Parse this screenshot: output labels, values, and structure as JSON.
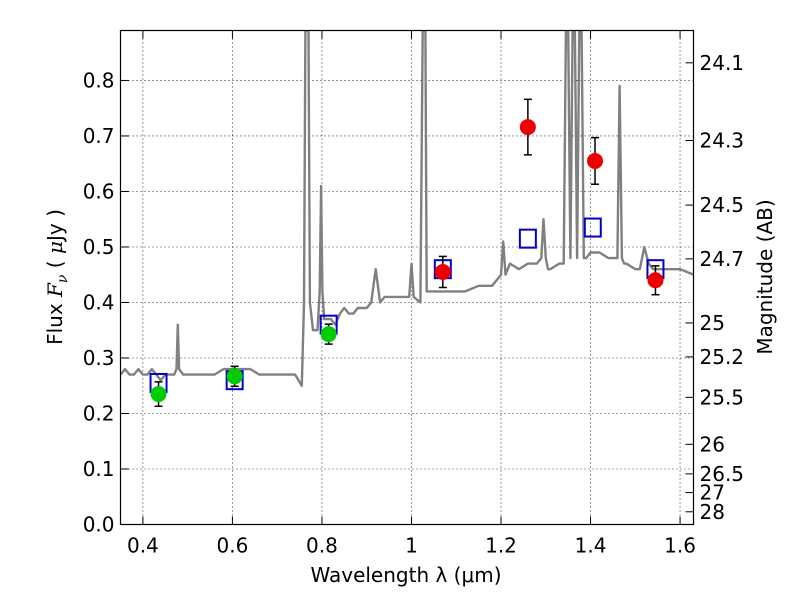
{
  "chart_data": {
    "type": "scatter",
    "title": "",
    "xlabel": "Wavelength  λ (μm)",
    "ylabel": "Flux  F_ν ( μJy )",
    "y2label": "Magnitude (AB)",
    "xlim": [
      0.35,
      1.63
    ],
    "ylim": [
      0.0,
      0.89
    ],
    "grid": true,
    "x_ticks": [
      0.4,
      0.6,
      0.8,
      1.0,
      1.2,
      1.4,
      1.6
    ],
    "x_tick_labels": [
      "0.4",
      "0.6",
      "0.8",
      "1",
      "1.2",
      "1.4",
      "1.6"
    ],
    "y_ticks": [
      0.0,
      0.1,
      0.2,
      0.3,
      0.4,
      0.5,
      0.6,
      0.7,
      0.8
    ],
    "y_tick_labels": [
      "0.0",
      "0.1",
      "0.2",
      "0.3",
      "0.4",
      "0.5",
      "0.6",
      "0.7",
      "0.8"
    ],
    "y2_ticks": [
      {
        "label": "24.1",
        "flux": 0.8318
      },
      {
        "label": "24.3",
        "flux": 0.6918
      },
      {
        "label": "24.5",
        "flux": 0.5754
      },
      {
        "label": "24.7",
        "flux": 0.4786
      },
      {
        "label": "25",
        "flux": 0.3631
      },
      {
        "label": "25.2",
        "flux": 0.302
      },
      {
        "label": "25.5",
        "flux": 0.2291
      },
      {
        "label": "26",
        "flux": 0.1445
      },
      {
        "label": "26.5",
        "flux": 0.0912
      },
      {
        "label": "27",
        "flux": 0.0575
      },
      {
        "label": "28",
        "flux": 0.0229
      }
    ],
    "series": [
      {
        "kind": "model-spectrum",
        "color": "#808080",
        "x": [
          0.35,
          0.36,
          0.37,
          0.38,
          0.39,
          0.4,
          0.41,
          0.42,
          0.43,
          0.44,
          0.45,
          0.46,
          0.47,
          0.475,
          0.478,
          0.481,
          0.49,
          0.5,
          0.52,
          0.54,
          0.56,
          0.58,
          0.6,
          0.62,
          0.64,
          0.66,
          0.68,
          0.7,
          0.72,
          0.74,
          0.755,
          0.76,
          0.763,
          0.767,
          0.77,
          0.773,
          0.78,
          0.79,
          0.795,
          0.798,
          0.801,
          0.805,
          0.81,
          0.82,
          0.83,
          0.84,
          0.85,
          0.86,
          0.87,
          0.88,
          0.89,
          0.9,
          0.91,
          0.92,
          0.93,
          0.94,
          0.96,
          0.98,
          0.995,
          1.0,
          1.005,
          1.02,
          1.025,
          1.028,
          1.031,
          1.034,
          1.04,
          1.06,
          1.08,
          1.1,
          1.12,
          1.15,
          1.18,
          1.2,
          1.205,
          1.21,
          1.22,
          1.24,
          1.26,
          1.28,
          1.29,
          1.295,
          1.3,
          1.305,
          1.31,
          1.33,
          1.34,
          1.345,
          1.35,
          1.355,
          1.36,
          1.365,
          1.37,
          1.375,
          1.38,
          1.385,
          1.39,
          1.4,
          1.42,
          1.44,
          1.46,
          1.465,
          1.47,
          1.475,
          1.48,
          1.5,
          1.51,
          1.52,
          1.53,
          1.54,
          1.55,
          1.58,
          1.6,
          1.63
        ],
        "y": [
          0.27,
          0.28,
          0.27,
          0.27,
          0.28,
          0.27,
          0.27,
          0.28,
          0.27,
          0.26,
          0.27,
          0.27,
          0.27,
          0.28,
          0.36,
          0.28,
          0.27,
          0.27,
          0.27,
          0.27,
          0.27,
          0.28,
          0.28,
          0.28,
          0.28,
          0.27,
          0.27,
          0.27,
          0.27,
          0.27,
          0.25,
          0.4,
          0.89,
          0.89,
          0.89,
          0.4,
          0.35,
          0.35,
          0.42,
          0.61,
          0.42,
          0.37,
          0.37,
          0.37,
          0.36,
          0.38,
          0.39,
          0.38,
          0.38,
          0.39,
          0.39,
          0.39,
          0.4,
          0.46,
          0.4,
          0.41,
          0.41,
          0.41,
          0.41,
          0.47,
          0.41,
          0.4,
          0.89,
          0.89,
          0.89,
          0.42,
          0.42,
          0.42,
          0.42,
          0.42,
          0.42,
          0.43,
          0.43,
          0.45,
          0.51,
          0.45,
          0.47,
          0.46,
          0.47,
          0.47,
          0.48,
          0.55,
          0.48,
          0.46,
          0.46,
          0.47,
          0.47,
          0.89,
          0.89,
          0.48,
          0.89,
          0.89,
          0.48,
          0.89,
          0.89,
          0.48,
          0.48,
          0.49,
          0.49,
          0.48,
          0.48,
          0.79,
          0.48,
          0.47,
          0.47,
          0.46,
          0.46,
          0.5,
          0.47,
          0.46,
          0.46,
          0.46,
          0.46,
          0.45
        ]
      },
      {
        "kind": "model-bandpass",
        "marker": "open-square",
        "color": "#0000cc",
        "x": [
          0.435,
          0.605,
          0.815,
          1.07,
          1.26,
          1.405,
          1.545
        ],
        "y": [
          0.255,
          0.26,
          0.36,
          0.46,
          0.515,
          0.535,
          0.46
        ]
      },
      {
        "kind": "observed-optical",
        "marker": "filled-circle",
        "color": "#00cc00",
        "x": [
          0.435,
          0.605,
          0.815
        ],
        "y": [
          0.235,
          0.267,
          0.343
        ],
        "err": [
          0.022,
          0.018,
          0.018
        ]
      },
      {
        "kind": "observed-nir",
        "marker": "filled-circle",
        "color": "#ee0000",
        "x": [
          1.07,
          1.26,
          1.41,
          1.545
        ],
        "y": [
          0.455,
          0.716,
          0.655,
          0.44
        ],
        "err": [
          0.028,
          0.05,
          0.042,
          0.026
        ]
      }
    ]
  }
}
